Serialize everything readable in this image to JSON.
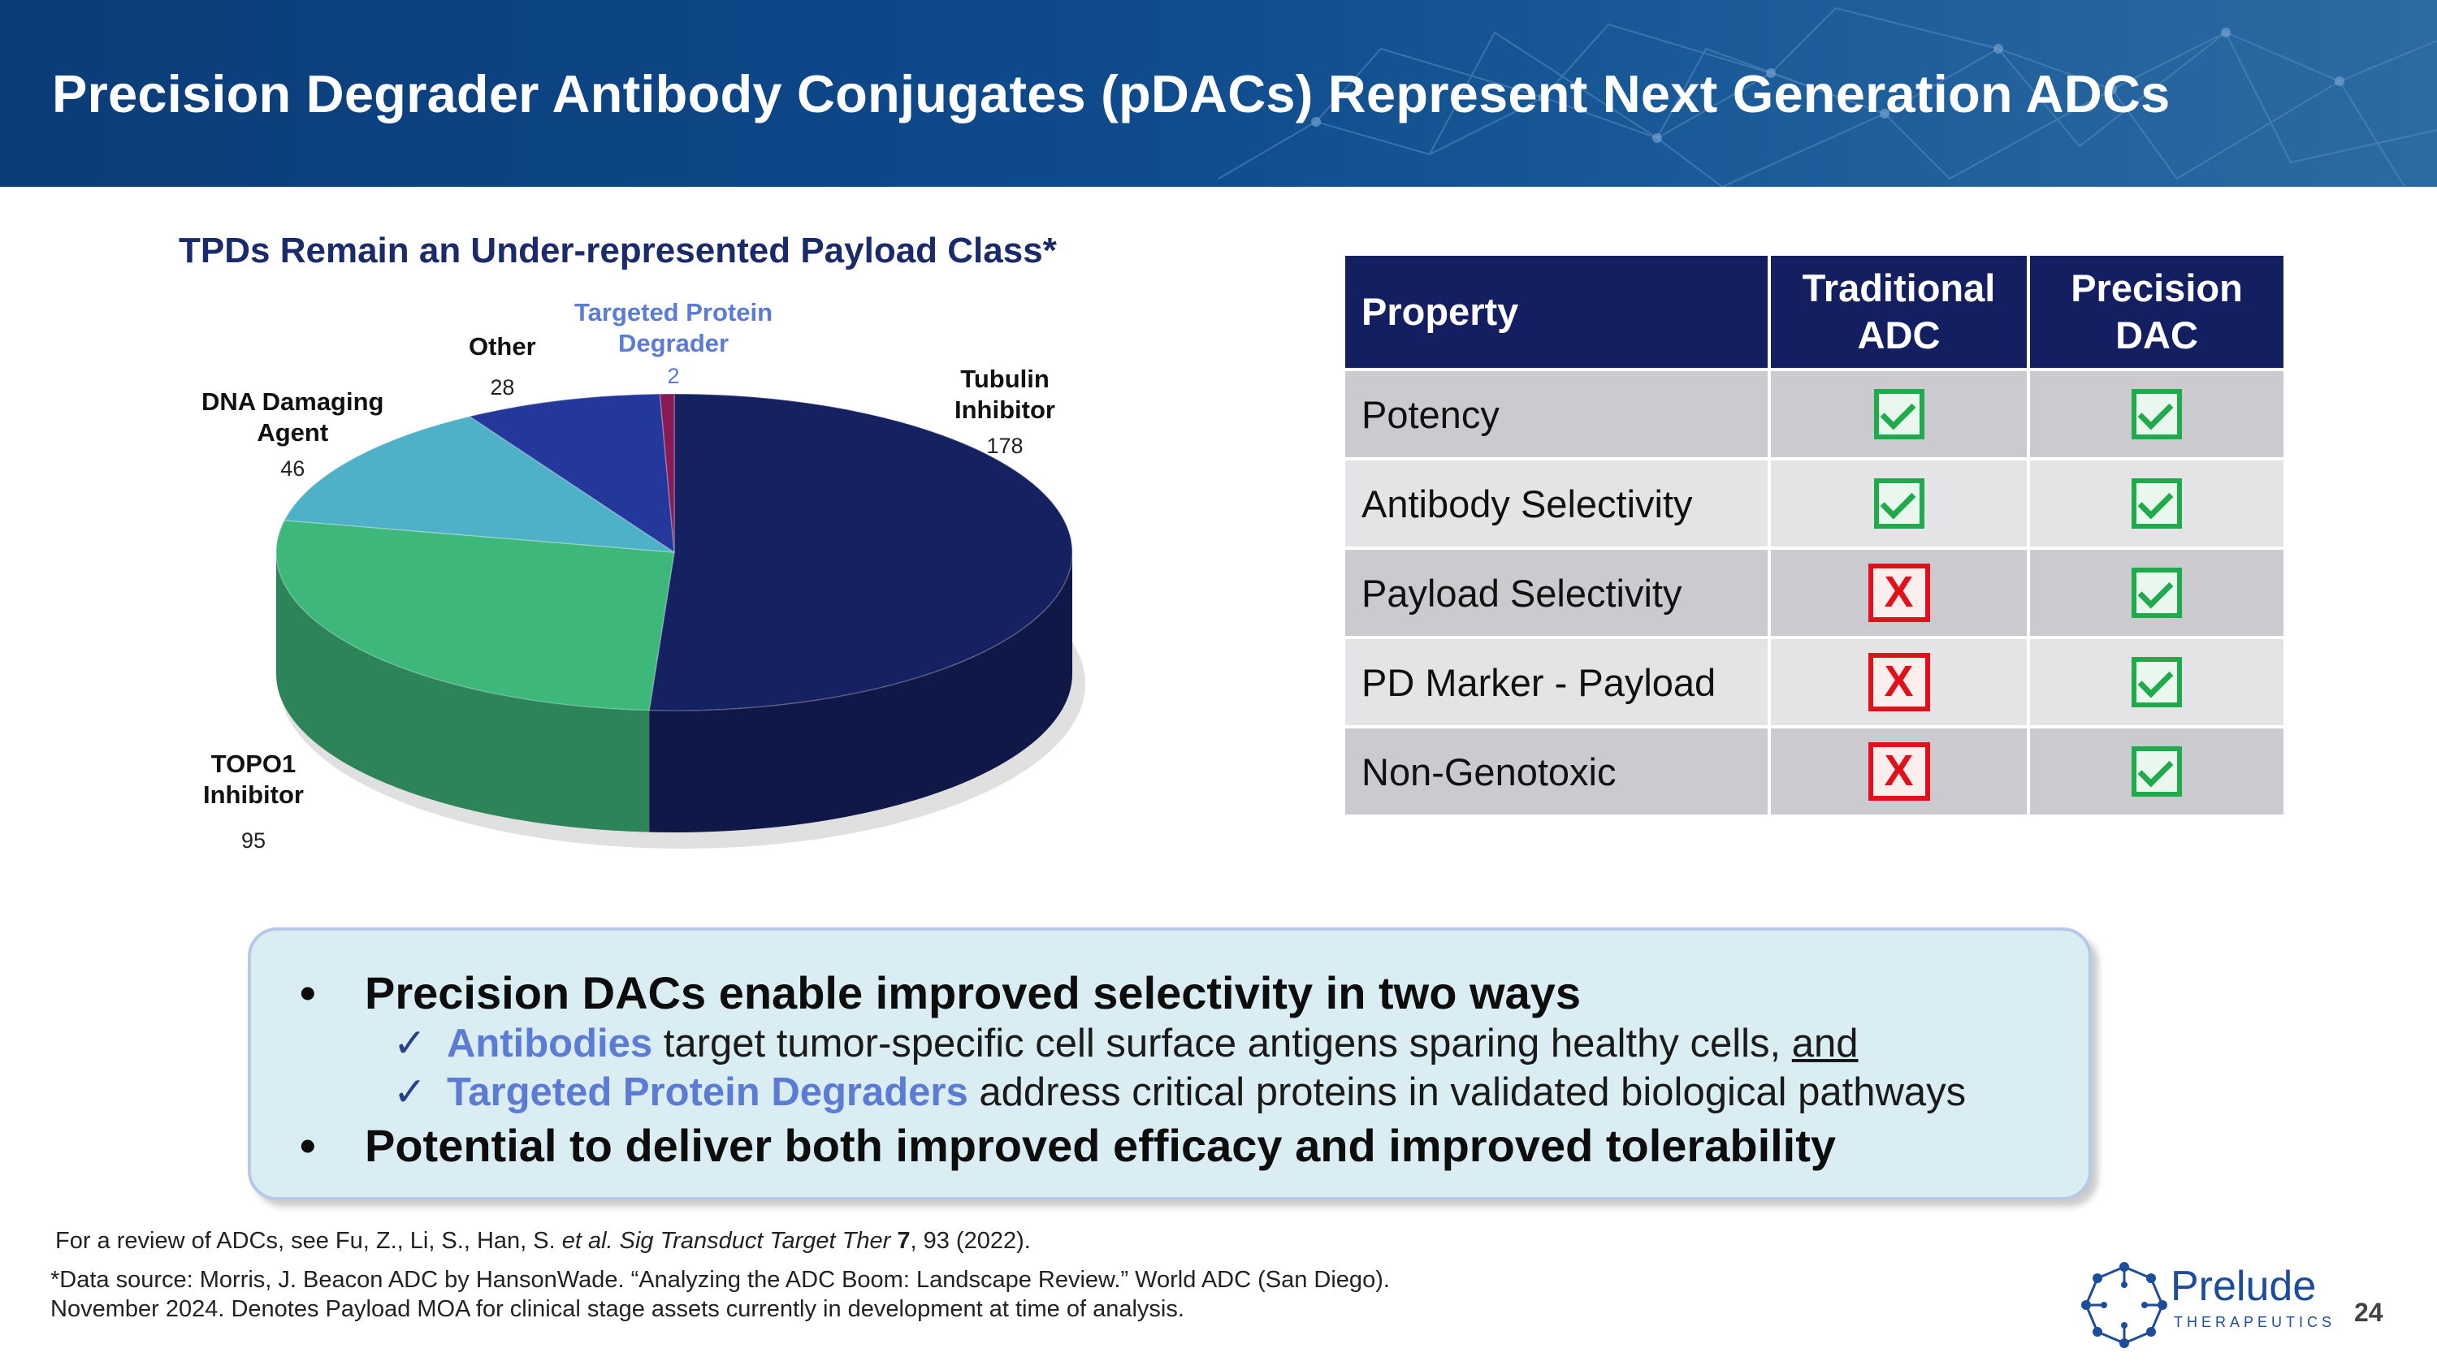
{
  "slide_title": "Precision Degrader Antibody Conjugates (pDACs) Represent Next Generation ADCs",
  "chart_data": {
    "type": "pie",
    "title": "TPDs Remain an Under-represented Payload Class*",
    "slices": [
      {
        "label_lines": [
          "Tubulin",
          "Inhibitor"
        ],
        "value": 178,
        "color": "#152161"
      },
      {
        "label_lines": [
          "TOPO1",
          "Inhibitor"
        ],
        "value": 95,
        "color": "#3db87a"
      },
      {
        "label_lines": [
          "DNA Damaging",
          "Agent"
        ],
        "value": 46,
        "color": "#4fb1c8"
      },
      {
        "label_lines": [
          "Other"
        ],
        "value": 28,
        "color": "#24379b"
      },
      {
        "label_lines": [
          "Targeted Protein",
          "Degrader"
        ],
        "value": 2,
        "color": "#8a1a55"
      }
    ]
  },
  "table": {
    "headers": [
      "Property",
      "Traditional ADC",
      "Precision DAC"
    ],
    "rows": [
      {
        "property": "Potency",
        "traditional": "check",
        "precision": "check"
      },
      {
        "property": "Antibody Selectivity",
        "traditional": "check",
        "precision": "check"
      },
      {
        "property": "Payload Selectivity",
        "traditional": "X",
        "precision": "check"
      },
      {
        "property": "PD Marker - Payload",
        "traditional": "X",
        "precision": "check"
      },
      {
        "property": "Non-Genotoxic",
        "traditional": "X",
        "precision": "check"
      }
    ]
  },
  "callout": {
    "bullet_symbol": "•",
    "check_symbol": "✓",
    "bullet1": "Precision DACs enable improved selectivity in two ways",
    "sub1_highlight": "Antibodies",
    "sub1_text": " target tumor-specific cell surface antigens sparing healthy cells, ",
    "sub1_underlined": "and",
    "sub2_highlight": "Targeted Protein Degraders",
    "sub2_text": " address critical proteins in validated biological pathways",
    "bullet2": "Potential to deliver both improved efficacy and improved tolerability"
  },
  "footnotes": {
    "line1_a": "For a review of ADCs, see Fu, Z., Li, S., Han, S. ",
    "line1_italic": "et al. Sig Transduct Target Ther",
    "line1_bold": " 7",
    "line1_b": ", 93 (2022).",
    "line2": "*Data source: Morris, J. Beacon ADC by HansonWade. “Analyzing the ADC Boom: Landscape Review.” World ADC (San Diego).",
    "line3": "November 2024. Denotes Payload MOA for clinical stage assets currently in development at time of analysis."
  },
  "logo": {
    "name": "Prelude",
    "tagline": "THERAPEUTICS"
  },
  "page_number": "24"
}
